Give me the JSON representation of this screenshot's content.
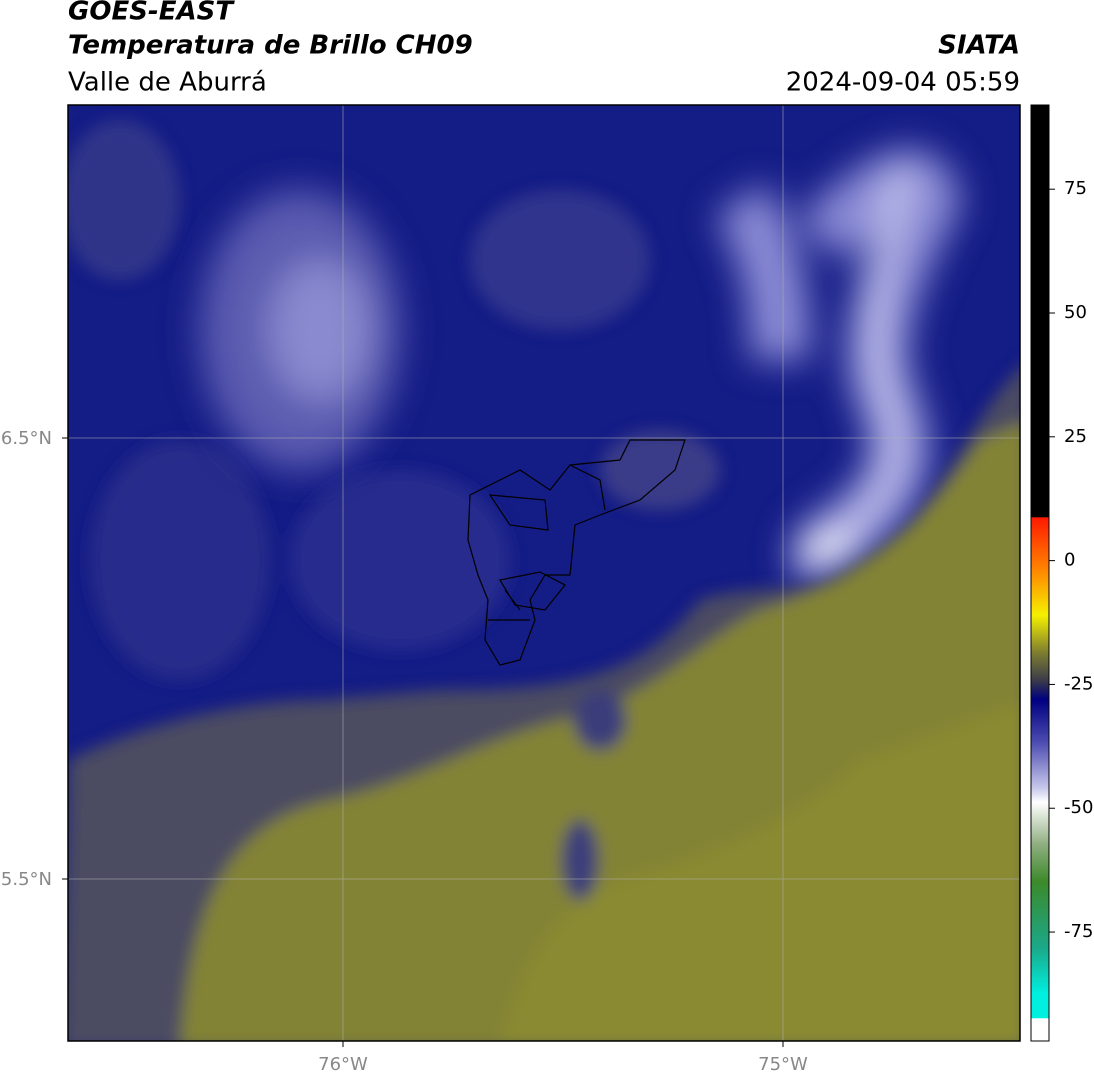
{
  "header": {
    "satellite": "GOES-EAST",
    "product": "Temperatura de Brillo CH09",
    "region": "Valle de Aburrá",
    "source": "SIATA",
    "datetime": "2024-09-04 05:59"
  },
  "map": {
    "lat_labels": [
      "6.5°N",
      "5.5°N"
    ],
    "lon_labels": [
      "76°W",
      "75°W"
    ]
  },
  "colorbar": {
    "lim": [
      -97,
      92
    ],
    "ticks": [
      75,
      50,
      25,
      0,
      -25,
      -50,
      -75
    ]
  }
}
